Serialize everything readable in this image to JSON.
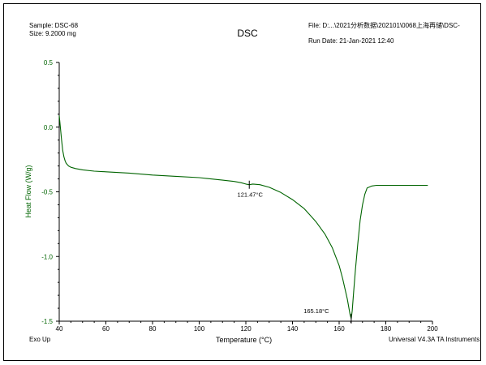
{
  "header": {
    "sample": "Sample: DSC-68",
    "size": "Size:  9.2000 mg",
    "file": "File: D:...\\2021分析数据\\202101\\0068上海再储\\DSC-",
    "run_date": "Run Date: 21-Jan-2021 12:40"
  },
  "footer": {
    "exo_up": "Exo Up",
    "instrument": "Universal V4.3A TA Instruments"
  },
  "colors": {
    "curve": "#006400",
    "axis": "#000000",
    "ylabel": "#006400"
  },
  "chart_data": {
    "type": "line",
    "title": "DSC",
    "xlabel": "Temperature (°C)",
    "ylabel": "Heat Flow (W/g)",
    "xlim": [
      40,
      200
    ],
    "ylim": [
      -1.5,
      0.5
    ],
    "xticks": [
      40,
      60,
      80,
      100,
      120,
      140,
      160,
      180,
      200
    ],
    "yticks": [
      0.5,
      0.0,
      -0.5,
      -1.0,
      -1.5
    ],
    "grid": false,
    "series": [
      {
        "x": [
          40,
          40.5,
          41,
          41.5,
          42,
          42.5,
          43,
          44,
          45,
          47,
          50,
          55,
          60,
          70,
          80,
          90,
          100,
          110,
          115,
          118,
          120,
          121.47,
          123,
          126,
          130,
          135,
          140,
          145,
          150,
          154,
          157,
          160,
          161.5,
          162.5,
          163.5,
          164.2,
          164.7,
          165.18,
          165.6,
          166.2,
          167,
          168,
          169,
          170,
          171,
          172,
          174,
          176,
          180,
          190,
          198
        ],
        "y": [
          0.09,
          0.0,
          -0.1,
          -0.18,
          -0.23,
          -0.26,
          -0.28,
          -0.3,
          -0.31,
          -0.32,
          -0.33,
          -0.34,
          -0.345,
          -0.355,
          -0.37,
          -0.38,
          -0.39,
          -0.41,
          -0.42,
          -0.43,
          -0.44,
          -0.445,
          -0.44,
          -0.445,
          -0.465,
          -0.505,
          -0.56,
          -0.63,
          -0.73,
          -0.83,
          -0.93,
          -1.07,
          -1.17,
          -1.25,
          -1.33,
          -1.4,
          -1.45,
          -1.48,
          -1.42,
          -1.28,
          -1.1,
          -0.9,
          -0.72,
          -0.6,
          -0.52,
          -0.47,
          -0.455,
          -0.45,
          -0.45,
          -0.45,
          -0.45
        ]
      }
    ],
    "annotations": [
      {
        "label": "121.47°C",
        "x": 121.47,
        "y": -0.445
      },
      {
        "label": "165.18°C",
        "x": 165.18,
        "y": -1.48
      }
    ]
  }
}
